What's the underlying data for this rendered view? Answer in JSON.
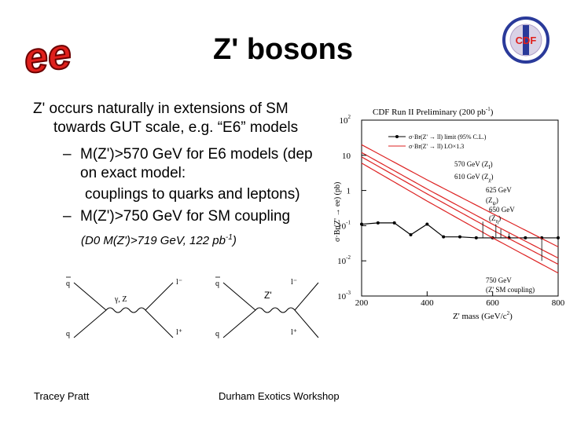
{
  "slide": {
    "logo_left_text": "ee",
    "logo_right_text": "CDF",
    "title": "Z' bosons",
    "bullets": [
      "Z' occurs naturally in extensions of SM",
      "towards GUT scale, e.g. “E6” models",
      "M(Z')>570 GeV for E6 models (dep",
      "on exact model:",
      "couplings to quarks and leptons)",
      "M(Z')>750 GeV for SM coupling"
    ],
    "sub_dash": "–",
    "note_prefix": "(D0 M(Z')>719 GeV, 122 pb",
    "note_sup": "-1",
    "note_suffix": ")",
    "diagram_z_label": "Z'",
    "diagram_gamma_label": "γ, Z",
    "diagram_q": "q",
    "diagram_qbar": "q",
    "diagram_lminus": "l⁻",
    "diagram_lplus": "l⁺",
    "footer_left": "Tracey Pratt",
    "footer_center": "Durham Exotics Workshop"
  },
  "chart_data": {
    "type": "line",
    "title": "CDF Run II Preliminary (200 pb",
    "title_sup": "-1",
    "title_close": ")",
    "xlabel": "Z' mass (GeV/c",
    "xlabel_sup": "2",
    "xlabel_close": ")",
    "ylabel": "σ·Br(Z' → ee) (pb)",
    "xlim": [
      200,
      800
    ],
    "ylim_log10": [
      -3,
      2
    ],
    "y_scale": "log",
    "x_ticks": [
      "200",
      "400",
      "600",
      "800"
    ],
    "y_ticks": [
      {
        "base": "10",
        "exp": "2",
        "y": 100
      },
      {
        "base": "10",
        "exp": "",
        "y": 10
      },
      {
        "base": "1",
        "exp": "",
        "y": 1
      },
      {
        "base": "10",
        "exp": "-1",
        "y": 0.1
      },
      {
        "base": "10",
        "exp": "-2",
        "y": 0.01
      },
      {
        "base": "10",
        "exp": "-3",
        "y": 0.001
      }
    ],
    "legend": [
      "σ·Br(Z' → ll) limit (95% C.L.)",
      "σ·Br(Z' → ll) LO×1.3"
    ],
    "series": [
      {
        "name": "σ·Br(Z' → ll) limit (95% C.L.)",
        "color": "#000000",
        "x": [
          200,
          250,
          300,
          350,
          400,
          450,
          500,
          550,
          600,
          650,
          700,
          750,
          800
        ],
        "y": [
          0.11,
          0.12,
          0.12,
          0.055,
          0.11,
          0.048,
          0.048,
          0.045,
          0.045,
          0.045,
          0.045,
          0.045,
          0.045
        ]
      },
      {
        "color": "#dd2222",
        "x": [
          200,
          400,
          600,
          800
        ],
        "y": [
          20,
          2.0,
          0.22,
          0.025
        ]
      },
      {
        "color": "#dd2222",
        "x": [
          200,
          400,
          600,
          800
        ],
        "y": [
          12,
          1.1,
          0.11,
          0.012
        ]
      },
      {
        "color": "#dd2222",
        "x": [
          200,
          400,
          600,
          800
        ],
        "y": [
          9,
          0.8,
          0.075,
          0.008
        ]
      },
      {
        "color": "#dd2222",
        "x": [
          200,
          400,
          600,
          800
        ],
        "y": [
          6,
          0.5,
          0.045,
          0.0045
        ]
      }
    ],
    "annotations": [
      {
        "text": "570 GeV (Z",
        "sub": "I",
        "close": ")",
        "x": 570
      },
      {
        "text": "610 GeV (Z",
        "sub": "χ",
        "close": ")",
        "x": 610
      },
      {
        "text": "625 GeV",
        "sub": "",
        "close": "",
        "x": 625
      },
      {
        "text": "(Z",
        "sub": "ψ",
        "close": ")",
        "x": 625
      },
      {
        "text": "650 GeV",
        "sub": "",
        "close": "",
        "x": 650
      },
      {
        "text": "(Z",
        "sub": "η",
        "close": ")",
        "x": 650
      },
      {
        "text": "750 GeV",
        "sub": "",
        "close": "",
        "x": 750
      },
      {
        "text": "(Z' SM coupling)",
        "sub": "",
        "close": "",
        "x": 750
      }
    ]
  }
}
